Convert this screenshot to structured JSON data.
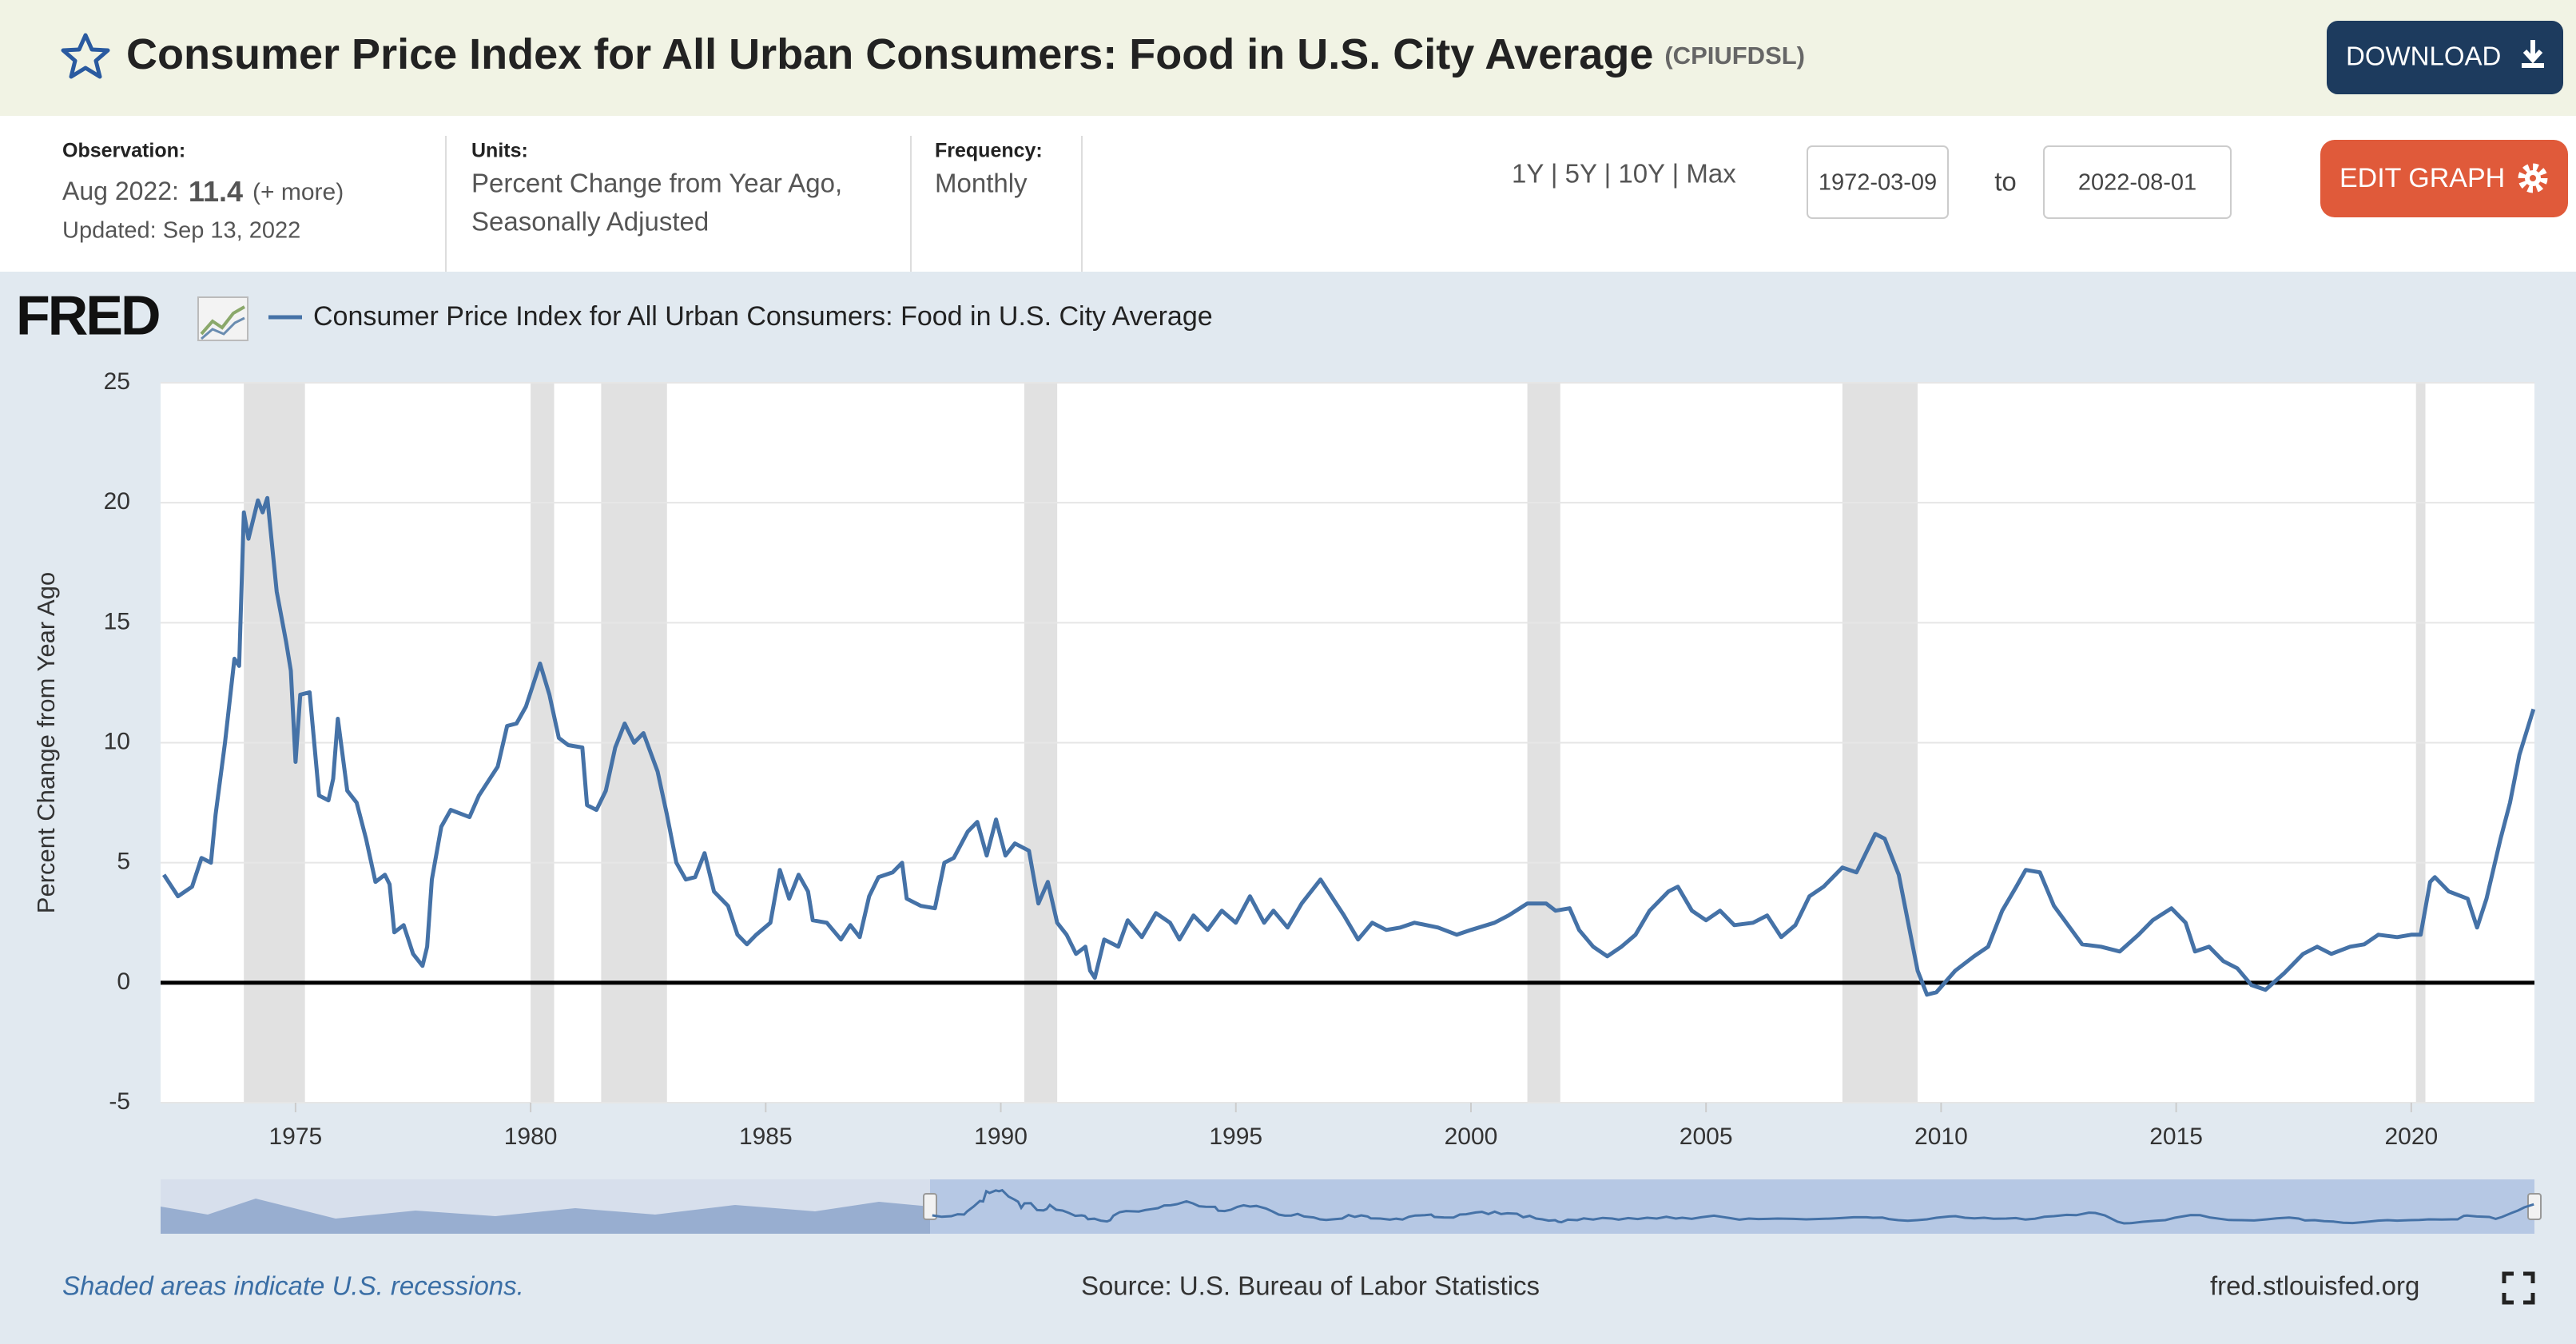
{
  "header": {
    "title": "Consumer Price Index for All Urban Consumers: Food in U.S. City Average",
    "series_id": "(CPIUFDSL)",
    "download": "DOWNLOAD"
  },
  "info": {
    "observation_label": "Observation:",
    "observation_date": "Aug 2022:",
    "observation_value": "11.4",
    "observation_more": "(+ more)",
    "updated": "Updated: Sep 13, 2022",
    "units_label": "Units:",
    "units": [
      "Percent Change from Year Ago,",
      "Seasonally Adjusted"
    ],
    "frequency_label": "Frequency:",
    "frequency": "Monthly"
  },
  "range": {
    "links": "1Y | 5Y | 10Y | Max",
    "start": "1972-03-09",
    "to": "to",
    "end": "2022-08-01"
  },
  "edit_graph": "EDIT GRAPH",
  "logo": "FRED",
  "chart_data": {
    "type": "line",
    "ylabel": "Percent Change from Year Ago",
    "grid": true,
    "xlim": [
      1972.13,
      2022.62
    ],
    "ylim": [
      -5,
      25
    ],
    "xticks": [
      1975,
      1980,
      1985,
      1990,
      1995,
      2000,
      2005,
      2010,
      2015,
      2020
    ],
    "yticks": [
      -5,
      0,
      5,
      10,
      15,
      20,
      25
    ],
    "recession_color": "#e1e1e1",
    "recessions": [
      [
        1973.9,
        1975.2
      ],
      [
        1980.0,
        1980.5
      ],
      [
        1981.5,
        1982.9
      ],
      [
        1990.5,
        1991.2
      ],
      [
        2001.2,
        2001.9
      ],
      [
        2007.9,
        2009.5
      ],
      [
        2020.1,
        2020.3
      ]
    ],
    "series": [
      {
        "name": "Consumer Price Index for All Urban Consumers: Food in U.S. City Average",
        "color": "#4572a7",
        "x": [
          1972.2,
          1972.5,
          1972.8,
          1973.0,
          1973.2,
          1973.3,
          1973.5,
          1973.7,
          1973.8,
          1973.9,
          1974.0,
          1974.2,
          1974.3,
          1974.4,
          1974.6,
          1974.8,
          1974.9,
          1975.0,
          1975.1,
          1975.3,
          1975.5,
          1975.7,
          1975.8,
          1975.9,
          1976.1,
          1976.3,
          1976.5,
          1976.7,
          1976.9,
          1977.0,
          1977.1,
          1977.3,
          1977.5,
          1977.7,
          1977.8,
          1977.9,
          1978.1,
          1978.3,
          1978.7,
          1978.9,
          1979.1,
          1979.3,
          1979.5,
          1979.7,
          1979.9,
          1980.2,
          1980.4,
          1980.6,
          1980.8,
          1981.1,
          1981.2,
          1981.4,
          1981.6,
          1981.8,
          1982.0,
          1982.2,
          1982.4,
          1982.7,
          1982.9,
          1983.1,
          1983.3,
          1983.5,
          1983.7,
          1983.9,
          1984.2,
          1984.4,
          1984.6,
          1984.8,
          1985.1,
          1985.3,
          1985.5,
          1985.7,
          1985.9,
          1986.0,
          1986.3,
          1986.6,
          1986.8,
          1987.0,
          1987.2,
          1987.4,
          1987.7,
          1987.9,
          1988.0,
          1988.3,
          1988.6,
          1988.8,
          1989.0,
          1989.3,
          1989.5,
          1989.7,
          1989.9,
          1990.1,
          1990.3,
          1990.6,
          1990.8,
          1991.0,
          1991.2,
          1991.4,
          1991.6,
          1991.8,
          1991.9,
          1992.0,
          1992.2,
          1992.5,
          1992.7,
          1993.0,
          1993.3,
          1993.6,
          1993.8,
          1994.1,
          1994.4,
          1994.7,
          1995.0,
          1995.3,
          1995.6,
          1995.8,
          1996.1,
          1996.4,
          1996.8,
          1997.1,
          1997.3,
          1997.6,
          1997.9,
          1998.2,
          1998.5,
          1998.8,
          1999.3,
          1999.7,
          2000.0,
          2000.5,
          2000.8,
          2001.2,
          2001.6,
          2001.8,
          2002.1,
          2002.3,
          2002.6,
          2002.9,
          2003.2,
          2003.5,
          2003.8,
          2004.2,
          2004.4,
          2004.7,
          2005.0,
          2005.3,
          2005.6,
          2006.0,
          2006.3,
          2006.6,
          2006.9,
          2007.2,
          2007.5,
          2007.9,
          2008.2,
          2008.6,
          2008.8,
          2009.1,
          2009.3,
          2009.5,
          2009.7,
          2009.9,
          2010.3,
          2010.7,
          2011.0,
          2011.3,
          2011.6,
          2011.8,
          2012.1,
          2012.4,
          2012.7,
          2013.0,
          2013.4,
          2013.8,
          2014.2,
          2014.5,
          2014.9,
          2015.2,
          2015.4,
          2015.7,
          2016.0,
          2016.3,
          2016.6,
          2016.9,
          2017.3,
          2017.7,
          2018.0,
          2018.3,
          2018.7,
          2019.0,
          2019.3,
          2019.7,
          2020.0,
          2020.2,
          2020.4,
          2020.5,
          2020.8,
          2021.2,
          2021.4,
          2021.6,
          2021.9,
          2022.1,
          2022.3,
          2022.6
        ],
        "values": [
          4.5,
          3.6,
          4.0,
          5.2,
          5.0,
          7.0,
          10,
          13.5,
          13.2,
          19.6,
          18.5,
          20.1,
          19.6,
          20.2,
          16.3,
          14.2,
          13.0,
          9.2,
          12.0,
          12.1,
          7.8,
          7.6,
          8.5,
          11.0,
          8.0,
          7.5,
          6.0,
          4.2,
          4.5,
          4.1,
          2.1,
          2.4,
          1.2,
          0.7,
          1.5,
          4.3,
          6.5,
          7.2,
          6.9,
          7.8,
          8.4,
          9.0,
          10.7,
          10.8,
          11.5,
          13.3,
          12.0,
          10.2,
          9.9,
          9.8,
          7.4,
          7.2,
          8.0,
          9.8,
          10.8,
          10.0,
          10.4,
          8.8,
          7.0,
          5.0,
          4.3,
          4.4,
          5.4,
          3.8,
          3.2,
          2.0,
          1.6,
          2.0,
          2.5,
          4.7,
          3.5,
          4.5,
          3.8,
          2.6,
          2.5,
          1.8,
          2.4,
          1.9,
          3.6,
          4.4,
          4.6,
          5.0,
          3.5,
          3.2,
          3.1,
          5.0,
          5.2,
          6.3,
          6.7,
          5.3,
          6.8,
          5.3,
          5.8,
          5.5,
          3.3,
          4.2,
          2.5,
          2.0,
          1.2,
          1.5,
          0.5,
          0.2,
          1.8,
          1.5,
          2.6,
          1.9,
          2.9,
          2.5,
          1.8,
          2.8,
          2.2,
          3.0,
          2.5,
          3.6,
          2.5,
          3.0,
          2.3,
          3.3,
          4.3,
          3.4,
          2.8,
          1.8,
          2.5,
          2.2,
          2.3,
          2.5,
          2.3,
          2.0,
          2.2,
          2.5,
          2.8,
          3.3,
          3.3,
          3.0,
          3.1,
          2.2,
          1.5,
          1.1,
          1.5,
          2.0,
          3.0,
          3.8,
          4.0,
          3.0,
          2.6,
          3.0,
          2.4,
          2.5,
          2.8,
          1.9,
          2.4,
          3.6,
          4.0,
          4.8,
          4.6,
          6.2,
          6.0,
          4.5,
          2.5,
          0.5,
          -0.5,
          -0.4,
          0.5,
          1.1,
          1.5,
          3.0,
          4.0,
          4.7,
          4.6,
          3.2,
          2.4,
          1.6,
          1.5,
          1.3,
          2.0,
          2.6,
          3.1,
          2.5,
          1.3,
          1.5,
          0.9,
          0.6,
          -0.1,
          -0.3,
          0.4,
          1.2,
          1.5,
          1.2,
          1.5,
          1.6,
          2.0,
          1.9,
          2.0,
          2.0,
          4.2,
          4.4,
          3.8,
          3.5,
          2.3,
          3.5,
          6.0,
          7.5,
          9.5,
          11.4
        ]
      }
    ]
  },
  "footer": {
    "recession_note": "Shaded areas indicate U.S. recessions.",
    "source": "Source: U.S. Bureau of Labor Statistics",
    "site": "fred.stlouisfed.org"
  }
}
